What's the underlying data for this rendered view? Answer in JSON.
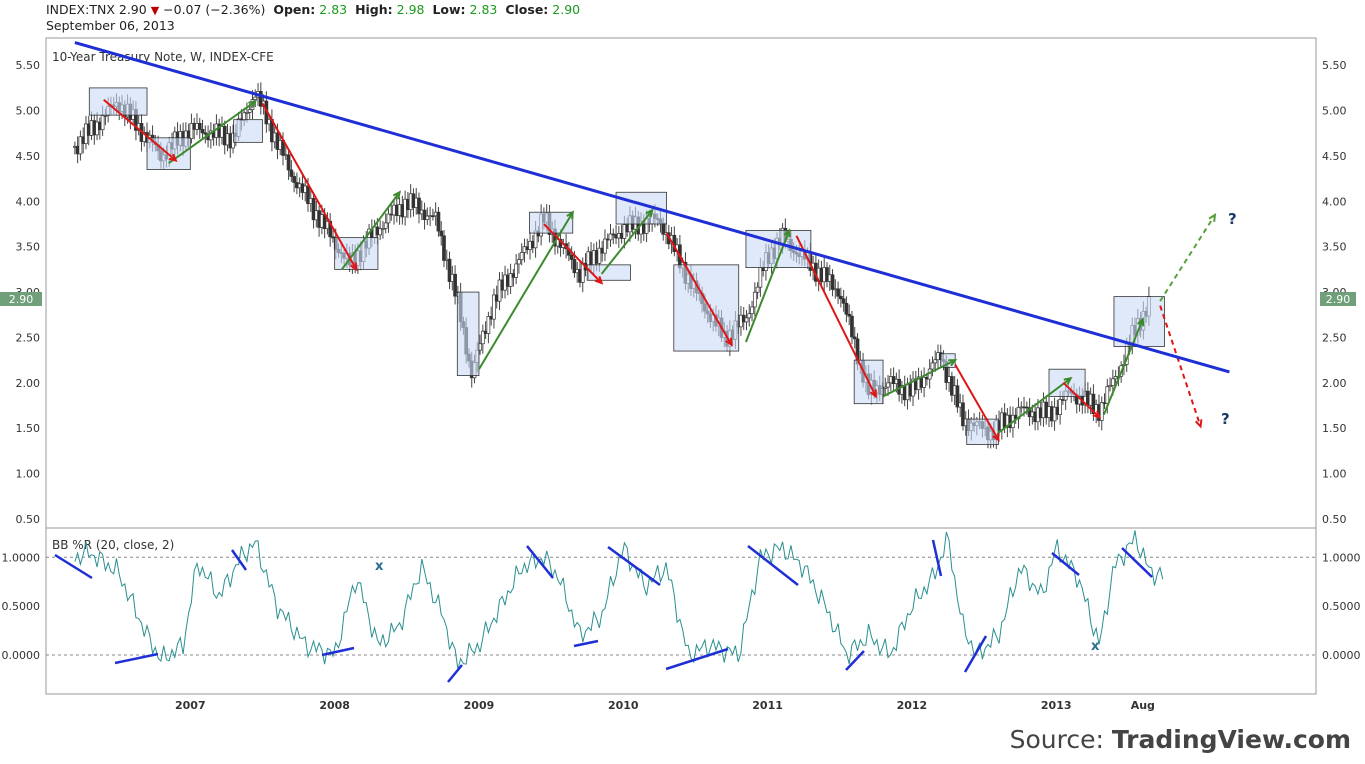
{
  "header": {
    "symbol": "INDEX:TNX",
    "last": "2.90",
    "change": "−0.07 (−2.36%)",
    "open_label": "Open:",
    "open": "2.83",
    "high_label": "High:",
    "high": "2.98",
    "low_label": "Low:",
    "low": "2.83",
    "close_label": "Close:",
    "close": "2.90",
    "date": "September 06, 2013"
  },
  "price_pane": {
    "title": "10-Year Treasury Note, W, INDEX-CFE",
    "ylim": [
      0.4,
      5.8
    ],
    "yticks": [
      "5.50",
      "5.00",
      "4.50",
      "4.00",
      "3.50",
      "3.00",
      "2.50",
      "2.00",
      "1.50",
      "1.00",
      "0.50"
    ],
    "last_price_badge": "2.90",
    "question_mark": "?"
  },
  "indicator_pane": {
    "title": "BB %R (20, close, 2)",
    "ylim": [
      -0.4,
      1.3
    ],
    "yticks": [
      "1.0000",
      "0.5000",
      "0.0000"
    ],
    "x_mark": "x"
  },
  "x_axis": {
    "labels": [
      "2007",
      "2008",
      "2009",
      "2010",
      "2011",
      "2012",
      "2013",
      "Aug"
    ]
  },
  "source": {
    "prefix": "Source: ",
    "brand": "TradingView.com"
  },
  "colors": {
    "candle_up": "#ffffff",
    "candle_down": "#333333",
    "trendline": "#1f2fd6",
    "up_arrow": "#3c8a2e",
    "down_arrow": "#e01515",
    "box": "#c9daf5",
    "indicator_line": "#2a8f8f",
    "badge": "#6fa07a"
  },
  "chart_data": [
    {
      "type": "candlestick",
      "title": "10-Year Treasury Note, W, INDEX-CFE",
      "x": [
        2006.2,
        2006.5,
        2006.8,
        2007.0,
        2007.3,
        2007.45,
        2007.7,
        2007.9,
        2008.1,
        2008.3,
        2008.5,
        2008.7,
        2008.85,
        2008.95,
        2009.1,
        2009.3,
        2009.45,
        2009.7,
        2009.85,
        2010.0,
        2010.25,
        2010.5,
        2010.7,
        2010.85,
        2011.0,
        2011.1,
        2011.3,
        2011.5,
        2011.7,
        2011.85,
        2012.0,
        2012.2,
        2012.35,
        2012.55,
        2012.75,
        2012.95,
        2013.1,
        2013.3,
        2013.45,
        2013.55,
        2013.65
      ],
      "close": [
        4.6,
        5.1,
        4.5,
        4.8,
        4.7,
        5.2,
        4.3,
        3.8,
        3.3,
        3.7,
        4.0,
        3.8,
        2.9,
        2.1,
        2.9,
        3.4,
        3.8,
        3.2,
        3.5,
        3.7,
        3.8,
        3.0,
        2.5,
        2.7,
        3.4,
        3.6,
        3.3,
        3.0,
        1.9,
        2.0,
        1.9,
        2.3,
        1.6,
        1.45,
        1.7,
        1.65,
        1.9,
        1.7,
        2.2,
        2.6,
        2.9
      ],
      "ylim": [
        0.4,
        5.8
      ],
      "trendline": {
        "from": [
          2006.2,
          5.75
        ],
        "to": [
          2014.2,
          2.12
        ]
      },
      "annotations": {
        "boxes": [
          [
            2006.3,
            2006.7,
            4.95,
            5.25
          ],
          [
            2006.7,
            2007.0,
            4.35,
            4.7
          ],
          [
            2007.3,
            2007.5,
            4.65,
            4.9
          ],
          [
            2008.0,
            2008.3,
            3.25,
            3.6
          ],
          [
            2008.85,
            2009.0,
            2.08,
            3.0
          ],
          [
            2009.35,
            2009.65,
            3.65,
            3.88
          ],
          [
            2009.75,
            2010.05,
            3.13,
            3.3
          ],
          [
            2009.95,
            2010.3,
            3.75,
            4.1
          ],
          [
            2010.35,
            2010.8,
            2.35,
            3.3
          ],
          [
            2010.85,
            2011.3,
            3.27,
            3.68
          ],
          [
            2011.6,
            2011.8,
            1.77,
            2.25
          ],
          [
            2012.2,
            2012.3,
            2.17,
            2.32
          ],
          [
            2012.38,
            2012.6,
            1.32,
            1.6
          ],
          [
            2012.95,
            2013.2,
            1.85,
            2.15
          ],
          [
            2013.4,
            2013.75,
            2.4,
            2.95
          ]
        ],
        "up_arrows": [
          [
            2006.85,
            4.42,
            2007.45,
            5.1
          ],
          [
            2008.05,
            3.25,
            2008.45,
            4.1
          ],
          [
            2009.0,
            2.15,
            2009.65,
            3.88
          ],
          [
            2009.85,
            3.2,
            2010.2,
            3.9
          ],
          [
            2010.85,
            2.45,
            2011.15,
            3.68
          ],
          [
            2011.8,
            1.85,
            2012.3,
            2.25
          ],
          [
            2012.6,
            1.45,
            2013.1,
            2.05
          ],
          [
            2013.33,
            1.65,
            2013.6,
            2.7
          ]
        ],
        "down_arrows": [
          [
            2006.4,
            5.12,
            2006.9,
            4.45
          ],
          [
            2007.5,
            5.08,
            2008.15,
            3.25
          ],
          [
            2009.45,
            3.75,
            2009.85,
            3.1
          ],
          [
            2010.3,
            3.65,
            2010.75,
            2.42
          ],
          [
            2011.2,
            3.62,
            2011.75,
            1.85
          ],
          [
            2012.3,
            2.2,
            2012.6,
            1.37
          ],
          [
            2013.05,
            2.0,
            2013.3,
            1.62
          ]
        ],
        "projection_up": [
          2013.72,
          2.9,
          2014.1,
          3.85
        ],
        "projection_down": [
          2013.72,
          2.85,
          2014.0,
          1.52
        ]
      }
    },
    {
      "type": "line",
      "title": "BB %R (20, close, 2)",
      "x": [
        2006.2,
        2006.3,
        2006.5,
        2006.7,
        2006.8,
        2006.95,
        2007.05,
        2007.2,
        2007.35,
        2007.45,
        2007.6,
        2007.8,
        2008.0,
        2008.15,
        2008.3,
        2008.45,
        2008.6,
        2008.75,
        2008.85,
        2009.0,
        2009.15,
        2009.3,
        2009.45,
        2009.55,
        2009.7,
        2009.85,
        2010.0,
        2010.15,
        2010.3,
        2010.45,
        2010.6,
        2010.8,
        2010.95,
        2011.1,
        2011.25,
        2011.4,
        2011.55,
        2011.7,
        2011.85,
        2012.0,
        2012.15,
        2012.25,
        2012.35,
        2012.45,
        2012.6,
        2012.75,
        2012.9,
        2013.0,
        2013.15,
        2013.3,
        2013.4,
        2013.55,
        2013.65,
        2013.75
      ],
      "y": [
        1.0,
        1.05,
        0.85,
        0.2,
        -0.05,
        0.1,
        0.95,
        0.6,
        1.0,
        1.15,
        0.5,
        0.1,
        0.0,
        0.8,
        0.1,
        0.3,
        0.9,
        0.4,
        -0.1,
        0.1,
        0.5,
        0.9,
        1.0,
        0.8,
        0.2,
        0.4,
        1.1,
        0.7,
        0.9,
        0.0,
        0.1,
        0.0,
        1.0,
        1.1,
        0.9,
        0.5,
        0.0,
        0.2,
        0.0,
        0.5,
        0.8,
        1.2,
        0.3,
        0.0,
        0.2,
        0.9,
        0.6,
        1.1,
        0.8,
        0.1,
        0.9,
        1.2,
        0.85,
        0.8
      ],
      "ylim": [
        -0.4,
        1.3
      ],
      "reference_lines": [
        1.0,
        0.0
      ]
    }
  ]
}
